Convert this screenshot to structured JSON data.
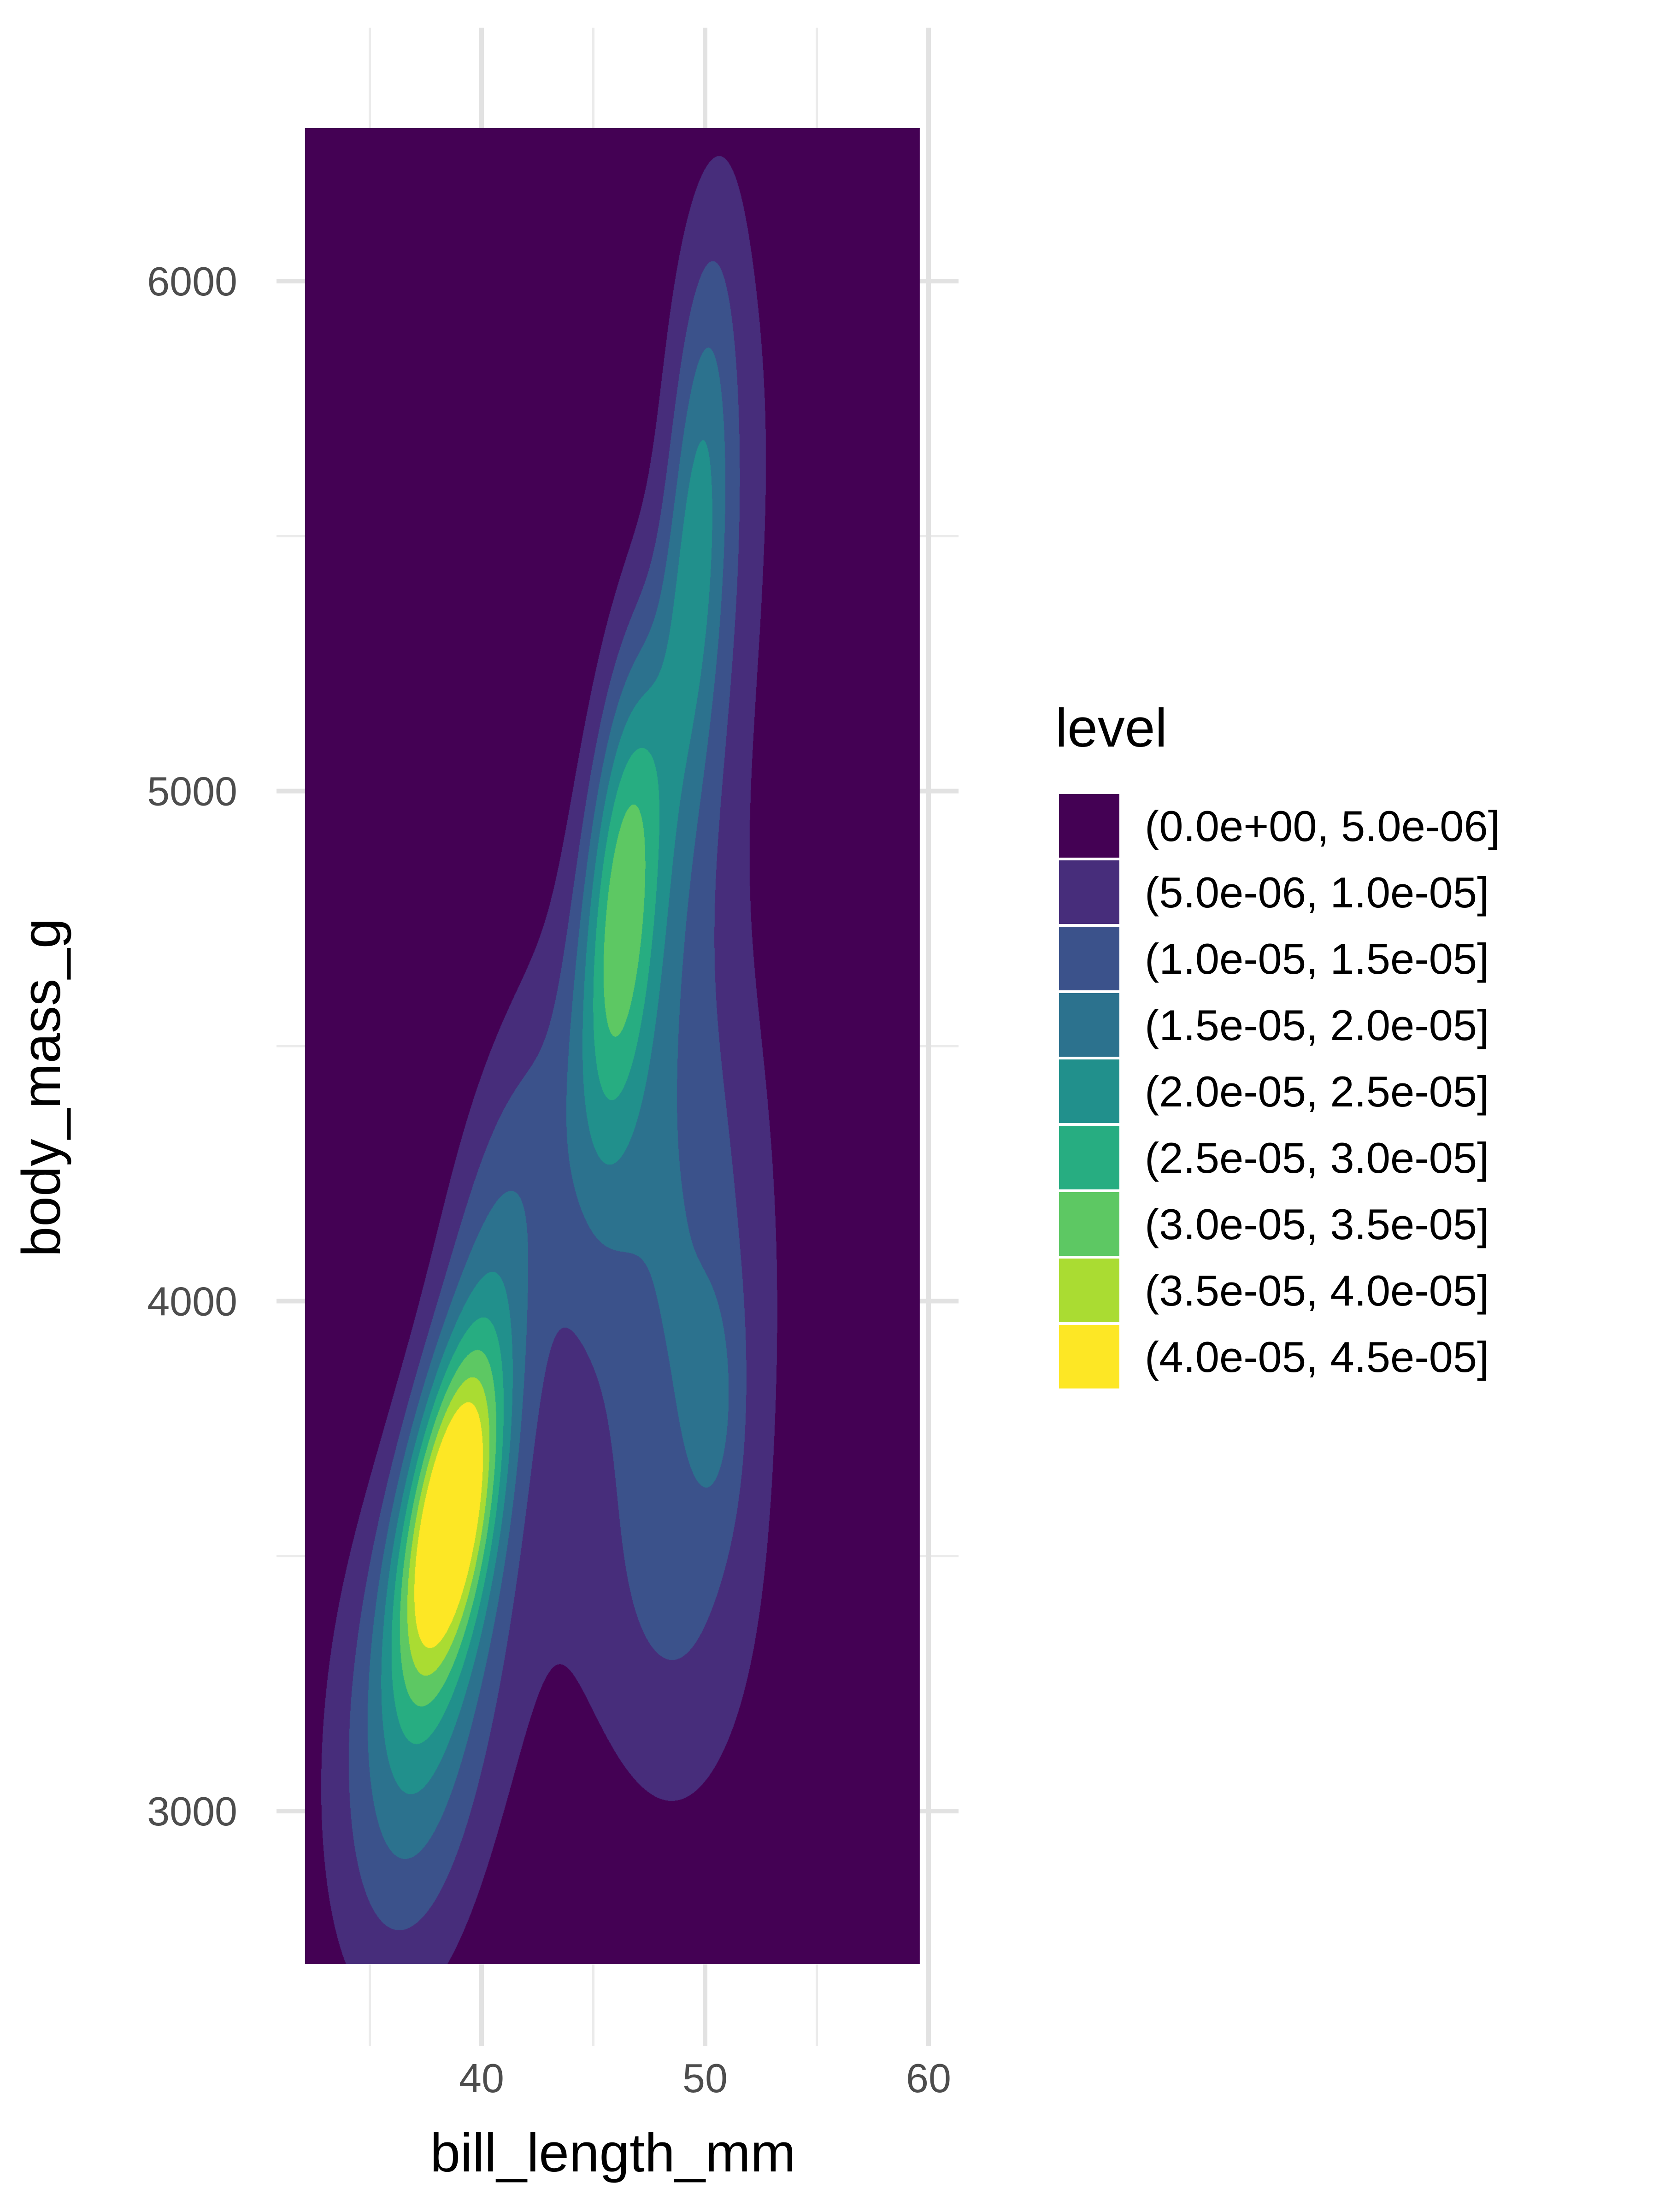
{
  "chart_data": {
    "type": "density-contour",
    "xlabel": "bill_length_mm",
    "ylabel": "body_mass_g",
    "xlim": [
      32.1,
      59.6
    ],
    "ylim": [
      2700,
      6300
    ],
    "x_ticks": [
      40,
      50,
      60
    ],
    "y_ticks": [
      3000,
      4000,
      5000,
      6000
    ],
    "x_minor_ticks": [
      35,
      45,
      55
    ],
    "y_minor_ticks": [
      3500,
      4500,
      5500
    ],
    "grid": true,
    "legend": {
      "title": "level",
      "position": "right",
      "entries": [
        {
          "label": "(0.0e+00, 5.0e-06]",
          "color": "#440154"
        },
        {
          "label": "(5.0e-06, 1.0e-05]",
          "color": "#472D7B"
        },
        {
          "label": "(1.0e-05, 1.5e-05]",
          "color": "#3B528B"
        },
        {
          "label": "(1.5e-05, 2.0e-05]",
          "color": "#2C728E"
        },
        {
          "label": "(2.0e-05, 2.5e-05]",
          "color": "#21908C"
        },
        {
          "label": "(2.5e-05, 3.0e-05]",
          "color": "#27AD81"
        },
        {
          "label": "(3.0e-05, 3.5e-05]",
          "color": "#5DC863"
        },
        {
          "label": "(3.5e-05, 4.0e-05]",
          "color": "#AADC32"
        },
        {
          "label": "(4.0e-05, 4.5e-05]",
          "color": "#FDE725"
        }
      ]
    },
    "density_peaks": [
      {
        "x": 38.5,
        "y": 3550,
        "weight": 45
      },
      {
        "x": 46.0,
        "y": 4800,
        "weight": 32
      },
      {
        "x": 49.8,
        "y": 5500,
        "weight": 27
      },
      {
        "x": 50.5,
        "y": 3800,
        "weight": 20
      }
    ]
  }
}
